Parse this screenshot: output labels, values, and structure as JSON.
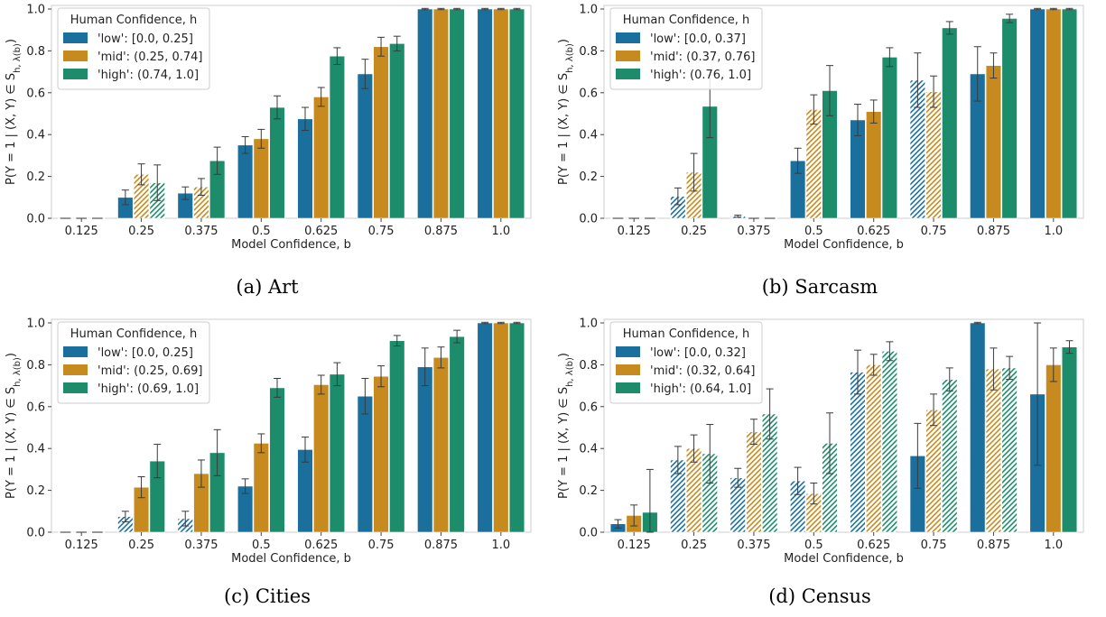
{
  "chart_data": [
    {
      "type": "bar",
      "caption": "(a) Art",
      "categories": [
        "0.125",
        "0.25",
        "0.375",
        "0.5",
        "0.625",
        "0.75",
        "0.875",
        "1.0"
      ],
      "xlabel": "Model Confidence, b",
      "ylabel": "P(Y = 1 | (X, Y) ∈ S_{h, λ(b)})",
      "ylim": [
        0,
        1.0
      ],
      "yticks": [
        "0.0",
        "0.2",
        "0.4",
        "0.6",
        "0.8",
        "1.0"
      ],
      "legend": {
        "title": "Human Confidence, h",
        "placement": "top-left"
      },
      "series": [
        {
          "name": "'low': [0.0, 0.25]",
          "color": "#1b6f9d",
          "values": [
            0.0,
            0.1,
            0.12,
            0.35,
            0.475,
            0.69,
            1.0,
            1.0
          ],
          "errors": [
            0.0,
            0.035,
            0.03,
            0.04,
            0.055,
            0.07,
            0.003,
            0.003
          ],
          "hatched": [
            false,
            false,
            false,
            false,
            false,
            false,
            false,
            false
          ]
        },
        {
          "name": "'mid': (0.25, 0.74]",
          "color": "#c68a1e",
          "values": [
            0.0,
            0.21,
            0.15,
            0.38,
            0.58,
            0.82,
            1.0,
            1.0
          ],
          "errors": [
            0.0,
            0.05,
            0.04,
            0.045,
            0.045,
            0.045,
            0.003,
            0.003
          ],
          "hatched": [
            false,
            true,
            true,
            false,
            false,
            false,
            false,
            false
          ]
        },
        {
          "name": "'high': (0.74, 1.0]",
          "color": "#1d8c6b",
          "values": [
            0.0,
            0.17,
            0.275,
            0.53,
            0.775,
            0.835,
            1.0,
            1.0
          ],
          "errors": [
            0.0,
            0.085,
            0.065,
            0.055,
            0.04,
            0.035,
            0.003,
            0.003
          ],
          "hatched": [
            false,
            true,
            false,
            false,
            false,
            false,
            false,
            false
          ]
        }
      ]
    },
    {
      "type": "bar",
      "caption": "(b) Sarcasm",
      "categories": [
        "0.125",
        "0.25",
        "0.375",
        "0.5",
        "0.625",
        "0.75",
        "0.875",
        "1.0"
      ],
      "xlabel": "Model Confidence, b",
      "ylabel": "P(Y = 1 | (X, Y) ∈ S_{h, λ(b)})",
      "ylim": [
        0,
        1.0
      ],
      "yticks": [
        "0.0",
        "0.2",
        "0.4",
        "0.6",
        "0.8",
        "1.0"
      ],
      "legend": {
        "title": "Human Confidence, h",
        "placement": "top-left"
      },
      "series": [
        {
          "name": "'low': [0.0, 0.37]",
          "color": "#1b6f9d",
          "values": [
            0.0,
            0.105,
            0.01,
            0.275,
            0.47,
            0.66,
            0.69,
            1.0
          ],
          "errors": [
            0.0,
            0.04,
            0.005,
            0.06,
            0.075,
            0.13,
            0.13,
            0.003
          ],
          "hatched": [
            false,
            true,
            true,
            false,
            false,
            true,
            false,
            false
          ]
        },
        {
          "name": "'mid': (0.37, 0.76]",
          "color": "#c68a1e",
          "values": [
            0.0,
            0.22,
            0.0,
            0.52,
            0.51,
            0.605,
            0.73,
            1.0
          ],
          "errors": [
            0.0,
            0.09,
            0.0,
            0.07,
            0.055,
            0.075,
            0.06,
            0.003
          ],
          "hatched": [
            false,
            true,
            false,
            true,
            false,
            true,
            false,
            false
          ]
        },
        {
          "name": "'high': (0.76, 1.0]",
          "color": "#1d8c6b",
          "values": [
            0.0,
            0.535,
            0.0,
            0.61,
            0.77,
            0.91,
            0.955,
            1.0
          ],
          "errors": [
            0.0,
            0.15,
            0.0,
            0.12,
            0.045,
            0.03,
            0.02,
            0.003
          ],
          "hatched": [
            false,
            false,
            false,
            false,
            false,
            false,
            false,
            false
          ]
        }
      ]
    },
    {
      "type": "bar",
      "caption": "(c) Cities",
      "categories": [
        "0.125",
        "0.25",
        "0.375",
        "0.5",
        "0.625",
        "0.75",
        "0.875",
        "1.0"
      ],
      "xlabel": "Model Confidence, b",
      "ylabel": "P(Y = 1 | (X, Y) ∈ S_{h, λ(b)})",
      "ylim": [
        0,
        1.0
      ],
      "yticks": [
        "0.0",
        "0.2",
        "0.4",
        "0.6",
        "0.8",
        "1.0"
      ],
      "legend": {
        "title": "Human Confidence, h",
        "placement": "top-left"
      },
      "series": [
        {
          "name": "'low': [0.0, 0.25]",
          "color": "#1b6f9d",
          "values": [
            0.0,
            0.075,
            0.065,
            0.22,
            0.395,
            0.65,
            0.79,
            1.0
          ],
          "errors": [
            0.0,
            0.025,
            0.035,
            0.035,
            0.06,
            0.085,
            0.09,
            0.003
          ],
          "hatched": [
            false,
            true,
            true,
            false,
            false,
            false,
            false,
            false
          ]
        },
        {
          "name": "'mid': (0.25, 0.69]",
          "color": "#c68a1e",
          "values": [
            0.0,
            0.215,
            0.28,
            0.425,
            0.705,
            0.745,
            0.835,
            1.0
          ],
          "errors": [
            0.0,
            0.05,
            0.065,
            0.045,
            0.045,
            0.05,
            0.05,
            0.003
          ],
          "hatched": [
            false,
            false,
            false,
            false,
            false,
            false,
            false,
            false
          ]
        },
        {
          "name": "'high': (0.69, 1.0]",
          "color": "#1d8c6b",
          "values": [
            0.0,
            0.34,
            0.38,
            0.69,
            0.755,
            0.915,
            0.935,
            1.0
          ],
          "errors": [
            0.0,
            0.08,
            0.11,
            0.045,
            0.055,
            0.025,
            0.03,
            0.003
          ],
          "hatched": [
            false,
            false,
            false,
            false,
            false,
            false,
            false,
            false
          ]
        }
      ]
    },
    {
      "type": "bar",
      "caption": "(d) Census",
      "categories": [
        "0.125",
        "0.25",
        "0.375",
        "0.5",
        "0.625",
        "0.75",
        "0.875",
        "1.0"
      ],
      "xlabel": "Model Confidence, b",
      "ylabel": "P(Y = 1 | (X, Y) ∈ S_{h, λ(b)})",
      "ylim": [
        0,
        1.0
      ],
      "yticks": [
        "0.0",
        "0.2",
        "0.4",
        "0.6",
        "0.8",
        "1.0"
      ],
      "legend": {
        "title": "Human Confidence, h",
        "placement": "top-left"
      },
      "series": [
        {
          "name": "'low': [0.0, 0.32]",
          "color": "#1b6f9d",
          "values": [
            0.04,
            0.345,
            0.26,
            0.245,
            0.765,
            0.365,
            1.0,
            0.66
          ],
          "errors": [
            0.02,
            0.065,
            0.045,
            0.065,
            0.105,
            0.155,
            0.003,
            0.34
          ],
          "hatched": [
            false,
            true,
            true,
            true,
            true,
            false,
            false,
            false
          ]
        },
        {
          "name": "'mid': (0.32, 0.64]",
          "color": "#c68a1e",
          "values": [
            0.08,
            0.4,
            0.48,
            0.185,
            0.8,
            0.585,
            0.78,
            0.8
          ],
          "errors": [
            0.05,
            0.065,
            0.06,
            0.05,
            0.05,
            0.075,
            0.1,
            0.08
          ],
          "hatched": [
            false,
            true,
            true,
            true,
            true,
            true,
            true,
            false
          ]
        },
        {
          "name": "'high': (0.64, 1.0]",
          "color": "#1d8c6b",
          "values": [
            0.095,
            0.375,
            0.565,
            0.425,
            0.865,
            0.73,
            0.785,
            0.885
          ],
          "errors": [
            0.205,
            0.14,
            0.12,
            0.145,
            0.045,
            0.055,
            0.055,
            0.03
          ],
          "hatched": [
            false,
            true,
            true,
            true,
            true,
            true,
            true,
            false
          ]
        }
      ]
    }
  ]
}
